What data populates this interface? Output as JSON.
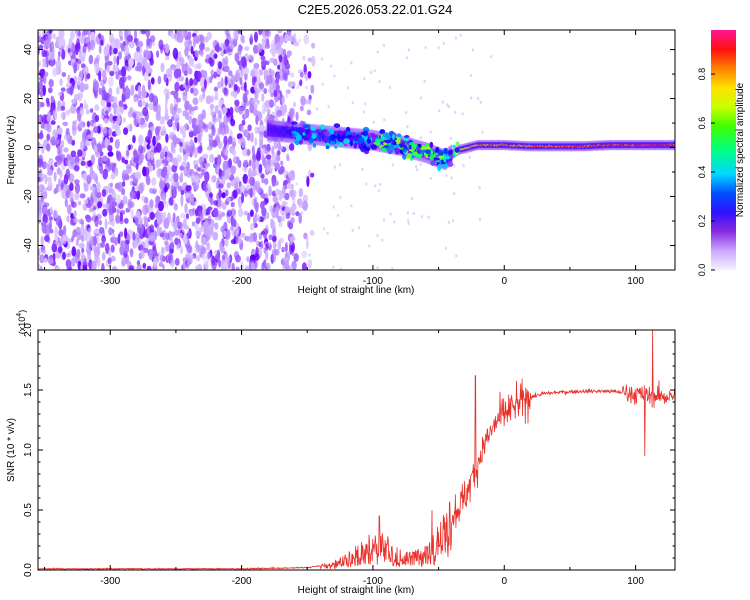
{
  "title": "C2E5.2026.053.22.01.G24",
  "chart_data": [
    {
      "type": "heatmap",
      "name": "spectrogram",
      "xlabel": "Height of straight line (km)",
      "ylabel": "Frequency (Hz)",
      "xlim": [
        -355,
        130
      ],
      "ylim": [
        -50,
        48
      ],
      "xticks": [
        -300,
        -200,
        -100,
        0,
        100
      ],
      "yticks": [
        -40,
        -20,
        0,
        20,
        40
      ],
      "colorbar": {
        "label": "Normalized spectral amplitude",
        "range": [
          0.0,
          0.98
        ],
        "ticks": [
          "0.0",
          "0.2",
          "0.4",
          "0.6",
          "0.8"
        ],
        "tick_values": [
          0.0,
          0.2,
          0.4,
          0.6,
          0.8
        ],
        "colors": [
          "#f3ecff",
          "#b080ff",
          "#6a00ff",
          "#0000ff",
          "#00e5ff",
          "#00ff66",
          "#c8ff00",
          "#ffea00",
          "#ff7f00",
          "#ff0000",
          "#ff1493"
        ]
      },
      "features": {
        "noise_region_x": [
          -355,
          -160
        ],
        "signal_track": {
          "x": [
            -180,
            -160,
            -140,
            -120,
            -100,
            -80,
            -60,
            -45,
            -35,
            -20,
            0,
            20,
            40,
            60,
            80,
            100,
            130
          ],
          "freq": [
            7,
            6,
            5,
            4,
            3,
            1,
            -2,
            -5,
            -1,
            1,
            1,
            0.5,
            0.5,
            0.5,
            1,
            1,
            1
          ],
          "amp": [
            0.2,
            0.3,
            0.35,
            0.4,
            0.45,
            0.55,
            0.6,
            0.4,
            0.7,
            0.8,
            0.85,
            0.88,
            0.9,
            0.9,
            0.92,
            0.95,
            0.97
          ]
        }
      }
    },
    {
      "type": "line",
      "name": "snr",
      "color": "#e8302a",
      "xlabel": "Height of straight line (km)",
      "ylabel": "SNR (10 * v/v)",
      "multiplier": "(x10",
      "multiplier_exp": "4",
      "multiplier_close": ")",
      "xlim": [
        -355,
        130
      ],
      "ylim": [
        0,
        2.0
      ],
      "xticks": [
        -300,
        -200,
        -100,
        0,
        100
      ],
      "yticks": [
        "0.0",
        "0.5",
        "1.0",
        "1.5",
        "2.0"
      ],
      "ytick_values": [
        0.0,
        0.5,
        1.0,
        1.5,
        2.0
      ],
      "envelope": {
        "x": [
          -355,
          -250,
          -200,
          -150,
          -130,
          -110,
          -100,
          -90,
          -80,
          -70,
          -60,
          -50,
          -40,
          -30,
          -25,
          -20,
          -15,
          -10,
          -5,
          0,
          10,
          20,
          30,
          40,
          60,
          80,
          90,
          100,
          110,
          115,
          120,
          130
        ],
        "y": [
          0.01,
          0.01,
          0.01,
          0.02,
          0.05,
          0.15,
          0.22,
          0.2,
          0.12,
          0.1,
          0.15,
          0.25,
          0.45,
          0.6,
          0.75,
          0.9,
          1.05,
          1.15,
          1.25,
          1.3,
          1.38,
          1.44,
          1.47,
          1.48,
          1.49,
          1.49,
          1.48,
          1.47,
          1.45,
          1.45,
          1.45,
          1.44
        ]
      },
      "spikes": [
        {
          "x": -22,
          "y": 1.62
        },
        {
          "x": 113,
          "y": 2.0
        },
        {
          "x": 107,
          "y": 0.95
        },
        {
          "x": -95,
          "y": 0.45
        },
        {
          "x": -55,
          "y": 0.5
        }
      ]
    }
  ]
}
